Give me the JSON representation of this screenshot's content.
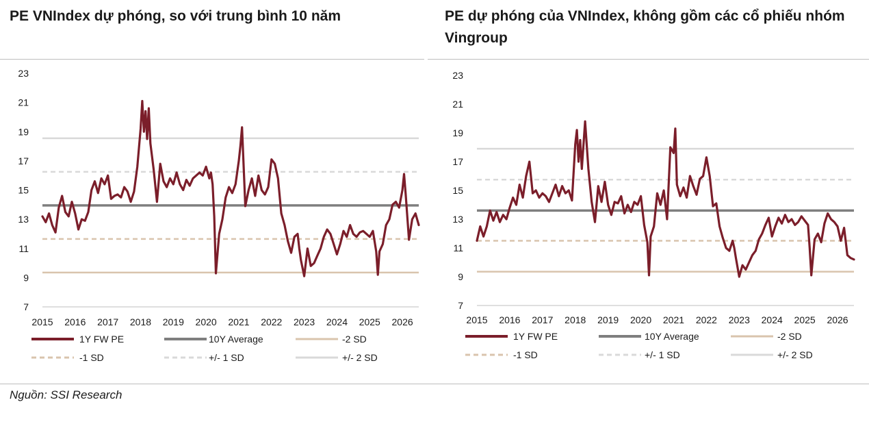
{
  "source": "Nguồn: SSI Research",
  "colors": {
    "pe": "#7b1e2a",
    "avg": "#7f7f7f",
    "sd_minus": "#d9c4ad",
    "sd_plus": "#d9d9d9"
  },
  "chart_data": [
    {
      "type": "line",
      "title": "PE VNIndex dự phóng, so với trung bình 10 năm",
      "ylim": [
        7,
        23
      ],
      "yticks": [
        7,
        9,
        11,
        13,
        15,
        17,
        19,
        21,
        23
      ],
      "xlim": [
        2015,
        2026.5
      ],
      "xticks": [
        "2015",
        "2016",
        "2017",
        "2018",
        "2019",
        "2020",
        "2021",
        "2022",
        "2023",
        "2024",
        "2025",
        "2026"
      ],
      "legend": [
        "1Y FW PE",
        "10Y Average",
        "-2 SD",
        "-1 SD",
        "+/- 1 SD",
        "+/- 2 SD"
      ],
      "legend_placement": "bottom",
      "grid": false,
      "reference_lines": {
        "average": 13.95,
        "minus_1sd": 11.65,
        "minus_2sd": 9.35,
        "plus_1sd": 16.25,
        "plus_2sd": 18.55
      },
      "series": [
        {
          "name": "1Y FW PE",
          "x": [
            2015.0,
            2015.1,
            2015.2,
            2015.3,
            2015.4,
            2015.5,
            2015.6,
            2015.7,
            2015.8,
            2015.9,
            2016.0,
            2016.1,
            2016.2,
            2016.3,
            2016.4,
            2016.5,
            2016.6,
            2016.7,
            2016.8,
            2016.9,
            2017.0,
            2017.1,
            2017.2,
            2017.3,
            2017.4,
            2017.5,
            2017.6,
            2017.7,
            2017.8,
            2017.9,
            2018.0,
            2018.05,
            2018.1,
            2018.15,
            2018.2,
            2018.25,
            2018.3,
            2018.4,
            2018.5,
            2018.6,
            2018.7,
            2018.8,
            2018.9,
            2019.0,
            2019.1,
            2019.2,
            2019.3,
            2019.4,
            2019.5,
            2019.6,
            2019.7,
            2019.8,
            2019.9,
            2020.0,
            2020.1,
            2020.15,
            2020.2,
            2020.25,
            2020.3,
            2020.4,
            2020.5,
            2020.6,
            2020.7,
            2020.8,
            2020.9,
            2021.0,
            2021.05,
            2021.1,
            2021.2,
            2021.3,
            2021.4,
            2021.5,
            2021.6,
            2021.7,
            2021.8,
            2021.9,
            2022.0,
            2022.1,
            2022.2,
            2022.3,
            2022.4,
            2022.5,
            2022.6,
            2022.7,
            2022.8,
            2022.85,
            2022.9,
            2023.0,
            2023.1,
            2023.2,
            2023.3,
            2023.4,
            2023.5,
            2023.6,
            2023.7,
            2023.8,
            2023.9,
            2024.0,
            2024.1,
            2024.2,
            2024.3,
            2024.4,
            2024.5,
            2024.6,
            2024.7,
            2024.8,
            2024.9,
            2025.0,
            2025.1,
            2025.2,
            2025.25,
            2025.3,
            2025.4,
            2025.5,
            2025.6,
            2025.7,
            2025.8,
            2025.9,
            2026.0,
            2026.05,
            2026.1,
            2026.2,
            2026.3,
            2026.4,
            2026.5
          ],
          "y": [
            13.2,
            12.8,
            13.4,
            12.6,
            12.1,
            13.8,
            14.6,
            13.5,
            13.2,
            14.2,
            13.4,
            12.3,
            13.0,
            12.9,
            13.5,
            15.0,
            15.6,
            14.8,
            15.8,
            15.4,
            16.0,
            14.4,
            14.6,
            14.7,
            14.5,
            15.2,
            14.9,
            14.2,
            14.9,
            16.6,
            19.2,
            21.1,
            19.0,
            20.4,
            18.5,
            20.6,
            18.2,
            16.4,
            14.2,
            16.8,
            15.6,
            15.2,
            15.8,
            15.4,
            16.2,
            15.4,
            15.0,
            15.7,
            15.3,
            15.8,
            16.0,
            16.2,
            16.0,
            16.6,
            15.8,
            16.2,
            15.4,
            13.2,
            9.3,
            12.0,
            13.0,
            14.5,
            15.2,
            14.8,
            15.4,
            17.0,
            18.0,
            19.3,
            13.9,
            15.0,
            15.8,
            14.6,
            16.0,
            15.0,
            14.7,
            15.2,
            17.1,
            16.8,
            15.8,
            13.4,
            12.6,
            11.5,
            10.7,
            11.8,
            12.0,
            11.0,
            10.2,
            9.1,
            11.0,
            9.8,
            10.0,
            10.5,
            11.0,
            11.8,
            12.3,
            12.0,
            11.3,
            10.6,
            11.3,
            12.2,
            11.8,
            12.6,
            12.0,
            11.8,
            12.1,
            12.2,
            12.0,
            11.8,
            12.2,
            10.8,
            9.2,
            10.8,
            11.3,
            12.6,
            13.0,
            14.0,
            14.2,
            13.8,
            15.0,
            16.1,
            14.7,
            11.6,
            13.0,
            13.4,
            12.6
          ]
        }
      ]
    },
    {
      "type": "line",
      "title": "PE dự phóng của VNIndex, không gồm các cổ phiếu nhóm Vingroup",
      "ylim": [
        7,
        23
      ],
      "yticks": [
        7,
        9,
        11,
        13,
        15,
        17,
        19,
        21,
        23
      ],
      "xlim": [
        2015,
        2026.5
      ],
      "xticks": [
        "2015",
        "2016",
        "2017",
        "2018",
        "2019",
        "2020",
        "2021",
        "2022",
        "2023",
        "2024",
        "2025",
        "2026"
      ],
      "legend": [
        "1Y FW PE",
        "10Y Average",
        "-2 SD",
        "-1 SD",
        "+/- 1 SD",
        "+/- 2 SD"
      ],
      "legend_placement": "bottom",
      "grid": false,
      "reference_lines": {
        "average": 13.6,
        "minus_1sd": 11.5,
        "minus_2sd": 9.35,
        "plus_1sd": 15.75,
        "plus_2sd": 17.9
      },
      "series": [
        {
          "name": "1Y FW PE",
          "x": [
            2015.0,
            2015.1,
            2015.2,
            2015.3,
            2015.4,
            2015.5,
            2015.6,
            2015.7,
            2015.8,
            2015.9,
            2016.0,
            2016.1,
            2016.2,
            2016.3,
            2016.4,
            2016.5,
            2016.6,
            2016.7,
            2016.8,
            2016.9,
            2017.0,
            2017.1,
            2017.2,
            2017.3,
            2017.4,
            2017.5,
            2017.6,
            2017.7,
            2017.8,
            2017.9,
            2018.0,
            2018.05,
            2018.1,
            2018.15,
            2018.2,
            2018.3,
            2018.4,
            2018.5,
            2018.6,
            2018.7,
            2018.8,
            2018.9,
            2019.0,
            2019.1,
            2019.2,
            2019.3,
            2019.4,
            2019.5,
            2019.6,
            2019.7,
            2019.8,
            2019.9,
            2020.0,
            2020.1,
            2020.2,
            2020.25,
            2020.3,
            2020.4,
            2020.5,
            2020.6,
            2020.7,
            2020.8,
            2020.9,
            2021.0,
            2021.05,
            2021.1,
            2021.2,
            2021.3,
            2021.4,
            2021.5,
            2021.6,
            2021.7,
            2021.8,
            2021.9,
            2022.0,
            2022.1,
            2022.2,
            2022.3,
            2022.4,
            2022.5,
            2022.6,
            2022.7,
            2022.8,
            2022.85,
            2022.9,
            2023.0,
            2023.1,
            2023.2,
            2023.3,
            2023.4,
            2023.5,
            2023.6,
            2023.7,
            2023.8,
            2023.9,
            2024.0,
            2024.1,
            2024.2,
            2024.3,
            2024.4,
            2024.5,
            2024.6,
            2024.7,
            2024.8,
            2024.9,
            2025.0,
            2025.1,
            2025.15,
            2025.2,
            2025.3,
            2025.4,
            2025.5,
            2025.6,
            2025.7,
            2025.8,
            2025.9,
            2026.0,
            2026.1,
            2026.2,
            2026.3,
            2026.4,
            2026.5
          ],
          "y": [
            11.5,
            12.5,
            11.8,
            12.5,
            13.6,
            12.9,
            13.5,
            12.8,
            13.3,
            13.0,
            13.8,
            14.5,
            14.0,
            15.4,
            14.5,
            16.0,
            17.0,
            14.8,
            15.0,
            14.5,
            14.8,
            14.6,
            14.2,
            14.8,
            15.4,
            14.6,
            15.3,
            14.8,
            15.0,
            14.3,
            18.2,
            19.2,
            17.0,
            18.5,
            16.5,
            19.8,
            16.5,
            14.2,
            12.8,
            15.3,
            14.2,
            15.6,
            14.0,
            13.3,
            14.2,
            14.1,
            14.6,
            13.4,
            14.0,
            13.5,
            14.2,
            14.0,
            14.6,
            12.6,
            11.4,
            9.1,
            11.8,
            12.5,
            14.8,
            14.0,
            15.0,
            13.0,
            18.0,
            17.6,
            19.3,
            15.4,
            14.6,
            15.2,
            14.5,
            16.0,
            15.3,
            14.7,
            15.8,
            16.0,
            17.3,
            16.0,
            13.9,
            14.1,
            12.5,
            11.7,
            11.0,
            10.8,
            11.5,
            11.0,
            10.3,
            9.0,
            9.8,
            9.5,
            10.0,
            10.5,
            10.8,
            11.6,
            12.0,
            12.6,
            13.1,
            11.8,
            12.5,
            13.1,
            12.7,
            13.3,
            12.8,
            13.0,
            12.6,
            12.8,
            13.2,
            12.9,
            12.6,
            11.0,
            9.1,
            11.6,
            12.0,
            11.4,
            12.7,
            13.4,
            13.0,
            12.8,
            12.5,
            11.5,
            12.4,
            10.5,
            10.3,
            10.2
          ]
        }
      ]
    }
  ]
}
